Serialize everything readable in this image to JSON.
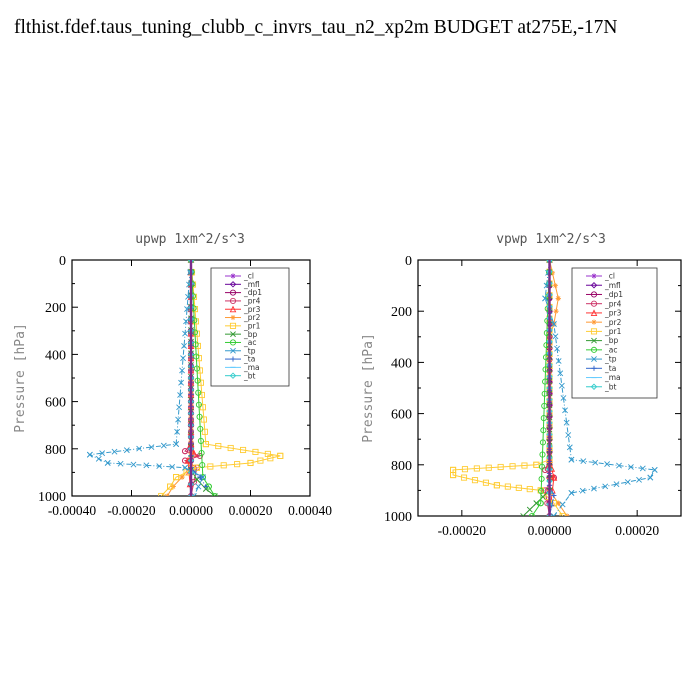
{
  "page": {
    "title": "flthist.fdef.taus_tuning_clubb_c_invrs_tau_n2_xp2m  BUDGET at275E,-17N"
  },
  "legend_entries": [
    {
      "name": "_cl",
      "color": "#9933cc",
      "marker": "star"
    },
    {
      "name": "_mfl",
      "color": "#660099",
      "marker": "diamond"
    },
    {
      "name": "_dp1",
      "color": "#990066",
      "marker": "circle"
    },
    {
      "name": "_pr4",
      "color": "#cc3366",
      "marker": "circle"
    },
    {
      "name": "_pr3",
      "color": "#ff3333",
      "marker": "tri"
    },
    {
      "name": "_pr2",
      "color": "#ff9933",
      "marker": "star"
    },
    {
      "name": "_pr1",
      "color": "#ffcc33",
      "marker": "square"
    },
    {
      "name": "_bp",
      "color": "#339933",
      "marker": "x"
    },
    {
      "name": "_ac",
      "color": "#33cc33",
      "marker": "circle"
    },
    {
      "name": "_tp",
      "color": "#3399cc",
      "marker": "x"
    },
    {
      "name": "_ta",
      "color": "#3366cc",
      "marker": "plus"
    },
    {
      "name": "_ma",
      "color": "#66ccff",
      "marker": "dash"
    },
    {
      "name": "_bt",
      "color": "#33cccc",
      "marker": "diamond"
    }
  ],
  "chart_data": [
    {
      "type": "line",
      "title": "upwp  1xm^2/s^3",
      "ylabel": "Pressure [hPa]",
      "xlim": [
        -0.0004,
        0.0004
      ],
      "ylim": [
        1000,
        0
      ],
      "xticks": [
        -0.0004,
        -0.0002,
        0.0,
        0.0002,
        0.0004
      ],
      "xtick_labels": [
        "-0.00040",
        "-0.00020",
        "0.00000",
        "0.00020",
        "0.00040"
      ],
      "yticks": [
        0,
        200,
        400,
        600,
        800,
        1000
      ],
      "legend_position": "top-right",
      "series": [
        {
          "name": "_cl",
          "x": [
            0,
            0,
            0,
            0
          ],
          "y": [
            0,
            300,
            700,
            1000
          ]
        },
        {
          "name": "_mfl",
          "x": [
            0,
            0,
            0,
            0
          ],
          "y": [
            0,
            300,
            700,
            1000
          ]
        },
        {
          "name": "_dp1",
          "x": [
            0,
            0,
            0,
            0
          ],
          "y": [
            0,
            300,
            700,
            1000
          ]
        },
        {
          "name": "_pr4",
          "x": [
            0,
            0,
            -2e-05,
            3e-05,
            -2e-05,
            2e-05,
            0
          ],
          "y": [
            0,
            780,
            810,
            830,
            850,
            880,
            1000
          ]
        },
        {
          "name": "_pr3",
          "x": [
            0,
            0,
            1e-05,
            -1e-05,
            0
          ],
          "y": [
            0,
            780,
            820,
            850,
            1000
          ]
        },
        {
          "name": "_pr2",
          "x": [
            0,
            0,
            -3e-05,
            -6e-05,
            -8e-05
          ],
          "y": [
            0,
            870,
            920,
            960,
            1000
          ]
        },
        {
          "name": "_pr1",
          "x": [
            0,
            5e-05,
            0.0003,
            0.0002,
            2e-05,
            -5e-05,
            -7e-05,
            -0.0001
          ],
          "y": [
            0,
            780,
            830,
            860,
            880,
            920,
            960,
            1000
          ]
        },
        {
          "name": "_bp",
          "x": [
            0,
            0,
            2e-05,
            5e-05,
            8e-05
          ],
          "y": [
            0,
            890,
            930,
            970,
            1000
          ]
        },
        {
          "name": "_ac",
          "x": [
            0,
            4e-05,
            6e-05,
            8e-05
          ],
          "y": [
            0,
            920,
            960,
            1000
          ]
        },
        {
          "name": "_tp",
          "x": [
            0,
            -5e-05,
            -0.00034,
            -0.00028,
            -2e-05,
            4e-05,
            1e-05
          ],
          "y": [
            0,
            780,
            825,
            860,
            880,
            920,
            1000
          ]
        },
        {
          "name": "_ta",
          "x": [
            0,
            0,
            3e-05,
            5e-05
          ],
          "y": [
            0,
            880,
            920,
            960
          ]
        },
        {
          "name": "_ma",
          "x": [
            0,
            0,
            0
          ],
          "y": [
            0,
            500,
            1000
          ]
        },
        {
          "name": "_bt",
          "x": [
            0,
            0,
            0
          ],
          "y": [
            0,
            500,
            1000
          ]
        }
      ]
    },
    {
      "type": "line",
      "title": "vpwp  1xm^2/s^3",
      "ylabel": "Pressure [hPa]",
      "xlim": [
        -0.0003,
        0.0003
      ],
      "ylim": [
        1000,
        0
      ],
      "xticks": [
        -0.0002,
        0.0,
        0.0002
      ],
      "xtick_labels": [
        "-0.00020",
        "0.00000",
        "0.00020"
      ],
      "yticks": [
        0,
        200,
        400,
        600,
        800,
        1000
      ],
      "legend_position": "top-right",
      "series": [
        {
          "name": "_cl",
          "x": [
            0,
            0,
            0,
            0
          ],
          "y": [
            0,
            300,
            700,
            1000
          ]
        },
        {
          "name": "_mfl",
          "x": [
            0,
            0,
            0,
            0
          ],
          "y": [
            0,
            300,
            700,
            1000
          ]
        },
        {
          "name": "_dp1",
          "x": [
            0,
            0,
            0,
            0
          ],
          "y": [
            0,
            300,
            700,
            1000
          ]
        },
        {
          "name": "_pr4",
          "x": [
            0,
            0,
            -1e-05,
            1e-05,
            -1e-05,
            0
          ],
          "y": [
            0,
            780,
            820,
            850,
            900,
            1000
          ]
        },
        {
          "name": "_pr3",
          "x": [
            0,
            0,
            1e-05,
            0
          ],
          "y": [
            0,
            780,
            850,
            1000
          ]
        },
        {
          "name": "_pr2",
          "x": [
            0,
            2e-05,
            1e-05,
            0,
            0,
            2e-05,
            4e-05
          ],
          "y": [
            0,
            150,
            250,
            300,
            900,
            950,
            1000
          ]
        },
        {
          "name": "_pr1",
          "x": [
            0,
            0,
            -3e-05,
            -0.00022,
            -0.00022,
            -0.00012,
            -2e-05,
            1e-05,
            3e-05
          ],
          "y": [
            0,
            780,
            800,
            820,
            840,
            880,
            900,
            950,
            1000
          ]
        },
        {
          "name": "_bp",
          "x": [
            0,
            0,
            -3e-05,
            -6e-05
          ],
          "y": [
            0,
            900,
            950,
            1000
          ]
        },
        {
          "name": "_ac",
          "x": [
            0,
            -2e-05,
            -4e-05
          ],
          "y": [
            0,
            950,
            1000
          ]
        },
        {
          "name": "_tp",
          "x": [
            0,
            -1e-05,
            1e-05,
            5e-05,
            0.00024,
            0.00023,
            5e-05,
            1e-05
          ],
          "y": [
            0,
            150,
            250,
            780,
            820,
            850,
            910,
            1000
          ]
        },
        {
          "name": "_ta",
          "x": [
            0,
            0,
            1e-05,
            0
          ],
          "y": [
            0,
            880,
            920,
            1000
          ]
        },
        {
          "name": "_ma",
          "x": [
            0,
            0,
            0
          ],
          "y": [
            0,
            500,
            1000
          ]
        },
        {
          "name": "_bt",
          "x": [
            0,
            0,
            0
          ],
          "y": [
            0,
            500,
            1000
          ]
        }
      ]
    }
  ]
}
